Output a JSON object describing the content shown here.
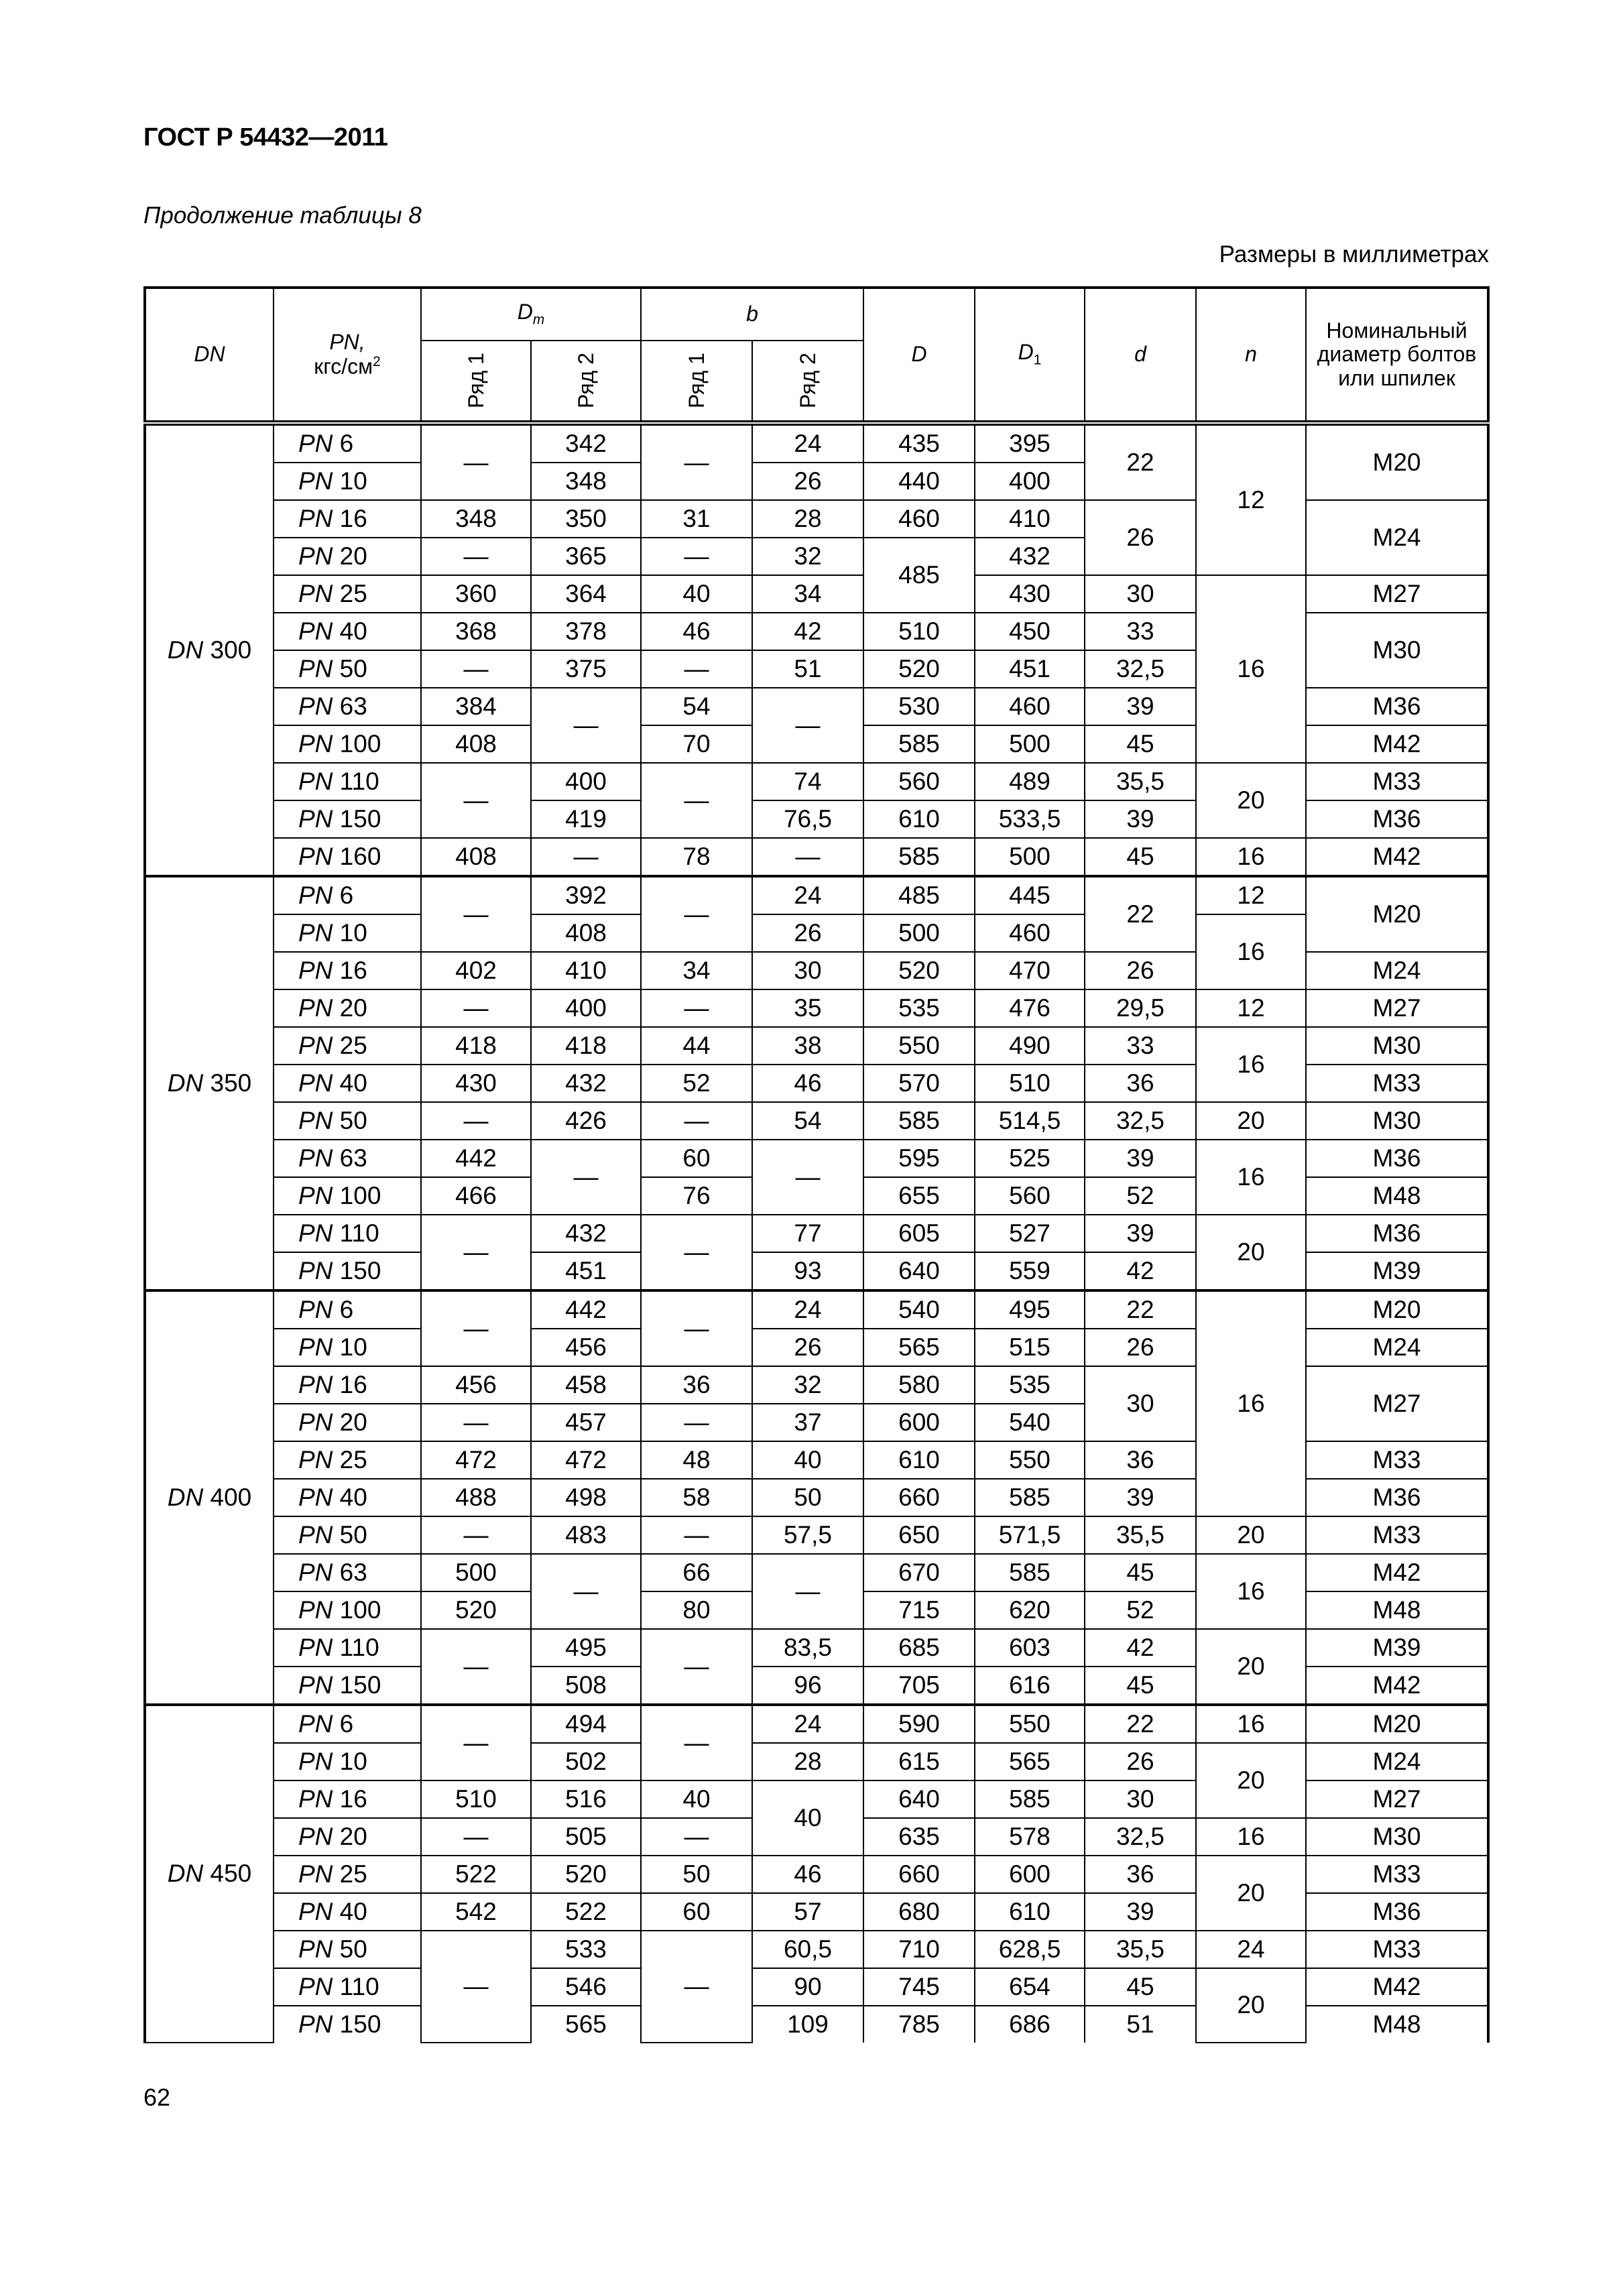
{
  "header": {
    "doc_title": "ГОСТ Р 54432—2011"
  },
  "caption": "Продолжение таблицы 8",
  "units": "Размеры в миллиметрах",
  "page_number": "62",
  "table": {
    "columns": {
      "dn": "DN",
      "pn": "PN,",
      "pn_unit": "кгс/см",
      "pn_unit_sup": "2",
      "dm": "D",
      "dm_sub": "m",
      "b": "b",
      "row1": "Ряд 1",
      "row2": "Ряд 2",
      "D": "D",
      "D1": "D",
      "D1_sub": "1",
      "d": "d",
      "n": "n",
      "bolt": "Номинальный диаметр болтов или шпилек"
    },
    "groups": [
      {
        "rows": [
          [
            {
              "v": "DN 300",
              "rs": 12
            },
            "PN 6",
            {
              "v": "—",
              "rs": 2
            },
            "342",
            {
              "v": "—",
              "rs": 2
            },
            "24",
            "435",
            "395",
            {
              "v": "22",
              "rs": 2
            },
            {
              "v": "12",
              "rs": 4
            },
            {
              "v": "M20",
              "rs": 2
            }
          ],
          [
            null,
            "PN 10",
            null,
            "348",
            null,
            "26",
            "440",
            "400",
            null,
            null,
            null
          ],
          [
            null,
            "PN 16",
            "348",
            "350",
            "31",
            "28",
            "460",
            "410",
            {
              "v": "26",
              "rs": 2
            },
            null,
            {
              "v": "M24",
              "rs": 2
            }
          ],
          [
            null,
            "PN 20",
            "—",
            "365",
            "—",
            "32",
            {
              "v": "485",
              "rs": 2
            },
            "432",
            null,
            null,
            null
          ],
          [
            null,
            "PN 25",
            "360",
            "364",
            "40",
            "34",
            null,
            "430",
            "30",
            {
              "v": "16",
              "rs": 5
            },
            "M27"
          ],
          [
            null,
            "PN 40",
            "368",
            "378",
            "46",
            "42",
            "510",
            "450",
            "33",
            null,
            {
              "v": "M30",
              "rs": 2
            }
          ],
          [
            null,
            "PN 50",
            "—",
            "375",
            "—",
            "51",
            "520",
            "451",
            "32,5",
            null,
            null
          ],
          [
            null,
            "PN 63",
            "384",
            {
              "v": "—",
              "rs": 2
            },
            "54",
            {
              "v": "—",
              "rs": 2
            },
            "530",
            "460",
            "39",
            null,
            "M36"
          ],
          [
            null,
            "PN 100",
            "408",
            null,
            "70",
            null,
            "585",
            "500",
            "45",
            null,
            "M42"
          ],
          [
            null,
            "PN 110",
            {
              "v": "—",
              "rs": 2
            },
            "400",
            {
              "v": "—",
              "rs": 2
            },
            "74",
            "560",
            "489",
            "35,5",
            {
              "v": "20",
              "rs": 2
            },
            "M33"
          ],
          [
            null,
            "PN 150",
            null,
            "419",
            null,
            "76,5",
            "610",
            "533,5",
            "39",
            null,
            "M36"
          ],
          [
            null,
            "PN 160",
            "408",
            "—",
            "78",
            "—",
            "585",
            "500",
            "45",
            "16",
            "M42"
          ]
        ]
      },
      {
        "rows": [
          [
            {
              "v": "DN 350",
              "rs": 11
            },
            "PN 6",
            {
              "v": "—",
              "rs": 2
            },
            "392",
            {
              "v": "—",
              "rs": 2
            },
            "24",
            "485",
            "445",
            {
              "v": "22",
              "rs": 2
            },
            "12",
            {
              "v": "M20",
              "rs": 2
            }
          ],
          [
            null,
            "PN 10",
            null,
            "408",
            null,
            "26",
            "500",
            "460",
            null,
            {
              "v": "16",
              "rs": 2
            },
            null
          ],
          [
            null,
            "PN 16",
            "402",
            "410",
            "34",
            "30",
            "520",
            "470",
            "26",
            null,
            "M24"
          ],
          [
            null,
            "PN 20",
            "—",
            "400",
            "—",
            "35",
            "535",
            "476",
            "29,5",
            "12",
            "M27"
          ],
          [
            null,
            "PN 25",
            "418",
            "418",
            "44",
            "38",
            "550",
            "490",
            "33",
            {
              "v": "16",
              "rs": 2
            },
            "M30"
          ],
          [
            null,
            "PN 40",
            "430",
            "432",
            "52",
            "46",
            "570",
            "510",
            "36",
            null,
            "M33"
          ],
          [
            null,
            "PN 50",
            "—",
            "426",
            "—",
            "54",
            "585",
            "514,5",
            "32,5",
            "20",
            "M30"
          ],
          [
            null,
            "PN 63",
            "442",
            {
              "v": "—",
              "rs": 2
            },
            "60",
            {
              "v": "—",
              "rs": 2
            },
            "595",
            "525",
            "39",
            {
              "v": "16",
              "rs": 2
            },
            "M36"
          ],
          [
            null,
            "PN 100",
            "466",
            null,
            "76",
            null,
            "655",
            "560",
            "52",
            null,
            "M48"
          ],
          [
            null,
            "PN 110",
            {
              "v": "—",
              "rs": 2
            },
            "432",
            {
              "v": "—",
              "rs": 2
            },
            "77",
            "605",
            "527",
            "39",
            {
              "v": "20",
              "rs": 2
            },
            "M36"
          ],
          [
            null,
            "PN 150",
            null,
            "451",
            null,
            "93",
            "640",
            "559",
            "42",
            null,
            "M39"
          ]
        ]
      },
      {
        "rows": [
          [
            {
              "v": "DN 400",
              "rs": 11
            },
            "PN 6",
            {
              "v": "—",
              "rs": 2
            },
            "442",
            {
              "v": "—",
              "rs": 2
            },
            "24",
            "540",
            "495",
            "22",
            {
              "v": "16",
              "rs": 6
            },
            "M20"
          ],
          [
            null,
            "PN 10",
            null,
            "456",
            null,
            "26",
            "565",
            "515",
            "26",
            null,
            "M24"
          ],
          [
            null,
            "PN 16",
            "456",
            "458",
            "36",
            "32",
            "580",
            "535",
            {
              "v": "30",
              "rs": 2
            },
            null,
            {
              "v": "M27",
              "rs": 2
            }
          ],
          [
            null,
            "PN 20",
            "—",
            "457",
            "—",
            "37",
            "600",
            "540",
            null,
            null,
            null
          ],
          [
            null,
            "PN 25",
            "472",
            "472",
            "48",
            "40",
            "610",
            "550",
            "36",
            null,
            "M33"
          ],
          [
            null,
            "PN 40",
            "488",
            "498",
            "58",
            "50",
            "660",
            "585",
            "39",
            null,
            "M36"
          ],
          [
            null,
            "PN 50",
            "—",
            "483",
            "—",
            "57,5",
            "650",
            "571,5",
            "35,5",
            "20",
            "M33"
          ],
          [
            null,
            "PN 63",
            "500",
            {
              "v": "—",
              "rs": 2
            },
            "66",
            {
              "v": "—",
              "rs": 2
            },
            "670",
            "585",
            "45",
            {
              "v": "16",
              "rs": 2
            },
            "M42"
          ],
          [
            null,
            "PN 100",
            "520",
            null,
            "80",
            null,
            "715",
            "620",
            "52",
            null,
            "M48"
          ],
          [
            null,
            "PN 110",
            {
              "v": "—",
              "rs": 2
            },
            "495",
            {
              "v": "—",
              "rs": 2
            },
            "83,5",
            "685",
            "603",
            "42",
            {
              "v": "20",
              "rs": 2
            },
            "M39"
          ],
          [
            null,
            "PN 150",
            null,
            "508",
            null,
            "96",
            "705",
            "616",
            "45",
            null,
            "M42"
          ]
        ]
      },
      {
        "rows": [
          [
            {
              "v": "DN 450",
              "rs": 9
            },
            "PN 6",
            {
              "v": "—",
              "rs": 2
            },
            "494",
            {
              "v": "—",
              "rs": 2
            },
            "24",
            "590",
            "550",
            "22",
            "16",
            "M20"
          ],
          [
            null,
            "PN 10",
            null,
            "502",
            null,
            "28",
            "615",
            "565",
            "26",
            {
              "v": "20",
              "rs": 2
            },
            "M24"
          ],
          [
            null,
            "PN 16",
            "510",
            "516",
            "40",
            {
              "v": "40",
              "rs": 2
            },
            "640",
            "585",
            "30",
            null,
            "M27"
          ],
          [
            null,
            "PN 20",
            "—",
            "505",
            "—",
            null,
            "635",
            "578",
            "32,5",
            "16",
            "M30"
          ],
          [
            null,
            "PN 25",
            "522",
            "520",
            "50",
            "46",
            "660",
            "600",
            "36",
            {
              "v": "20",
              "rs": 2
            },
            "M33"
          ],
          [
            null,
            "PN 40",
            "542",
            "522",
            "60",
            "57",
            "680",
            "610",
            "39",
            null,
            "M36"
          ],
          [
            null,
            "PN 50",
            {
              "v": "—",
              "rs": 3
            },
            "533",
            {
              "v": "—",
              "rs": 3
            },
            "60,5",
            "710",
            "628,5",
            "35,5",
            "24",
            "M33"
          ],
          [
            null,
            "PN 110",
            null,
            "546",
            null,
            "90",
            "745",
            "654",
            "45",
            {
              "v": "20",
              "rs": 2
            },
            "M42"
          ],
          [
            null,
            "PN 150",
            null,
            "565",
            null,
            "109",
            "785",
            "686",
            "51",
            null,
            "M48"
          ]
        ]
      }
    ]
  }
}
